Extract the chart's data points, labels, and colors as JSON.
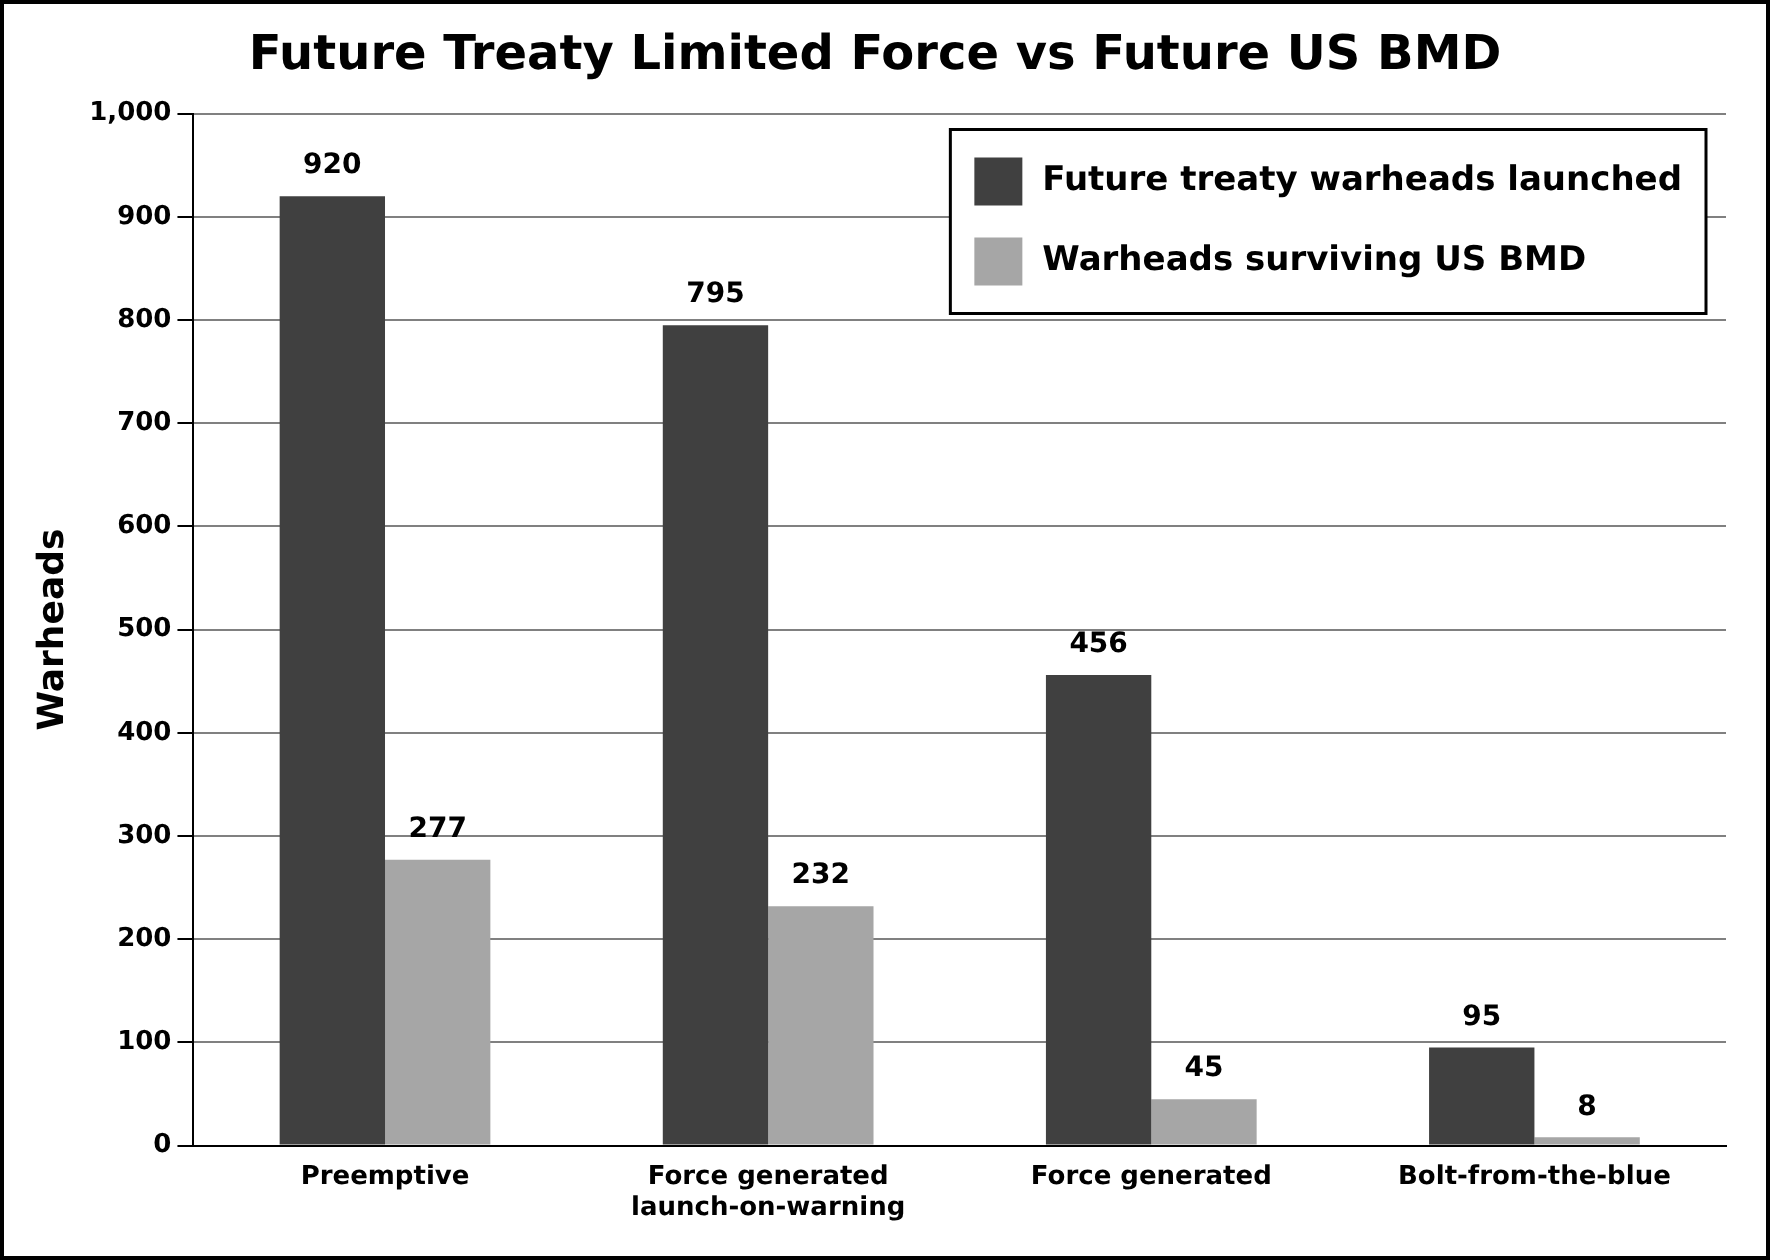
{
  "chart_data": {
    "type": "bar",
    "title": "Future Treaty Limited Force vs Future US BMD",
    "ylabel": "Warheads",
    "categories": [
      "Preemptive",
      "Force generated launch-on-warning",
      "Force generated",
      "Bolt-from-the-blue"
    ],
    "series": [
      {
        "name": "Future treaty warheads launched",
        "color": "#404040",
        "values": [
          920,
          795,
          456,
          95
        ]
      },
      {
        "name": "Warheads surviving US BMD",
        "color": "#a6a6a6",
        "values": [
          277,
          232,
          45,
          8
        ]
      }
    ],
    "ylim": [
      0,
      1000
    ],
    "yticks": [
      0,
      100,
      200,
      300,
      400,
      500,
      600,
      700,
      800,
      900,
      {
        "value": 1000,
        "label": "1,000"
      }
    ],
    "grid": "y",
    "legend": "top right",
    "data_labels": true
  }
}
